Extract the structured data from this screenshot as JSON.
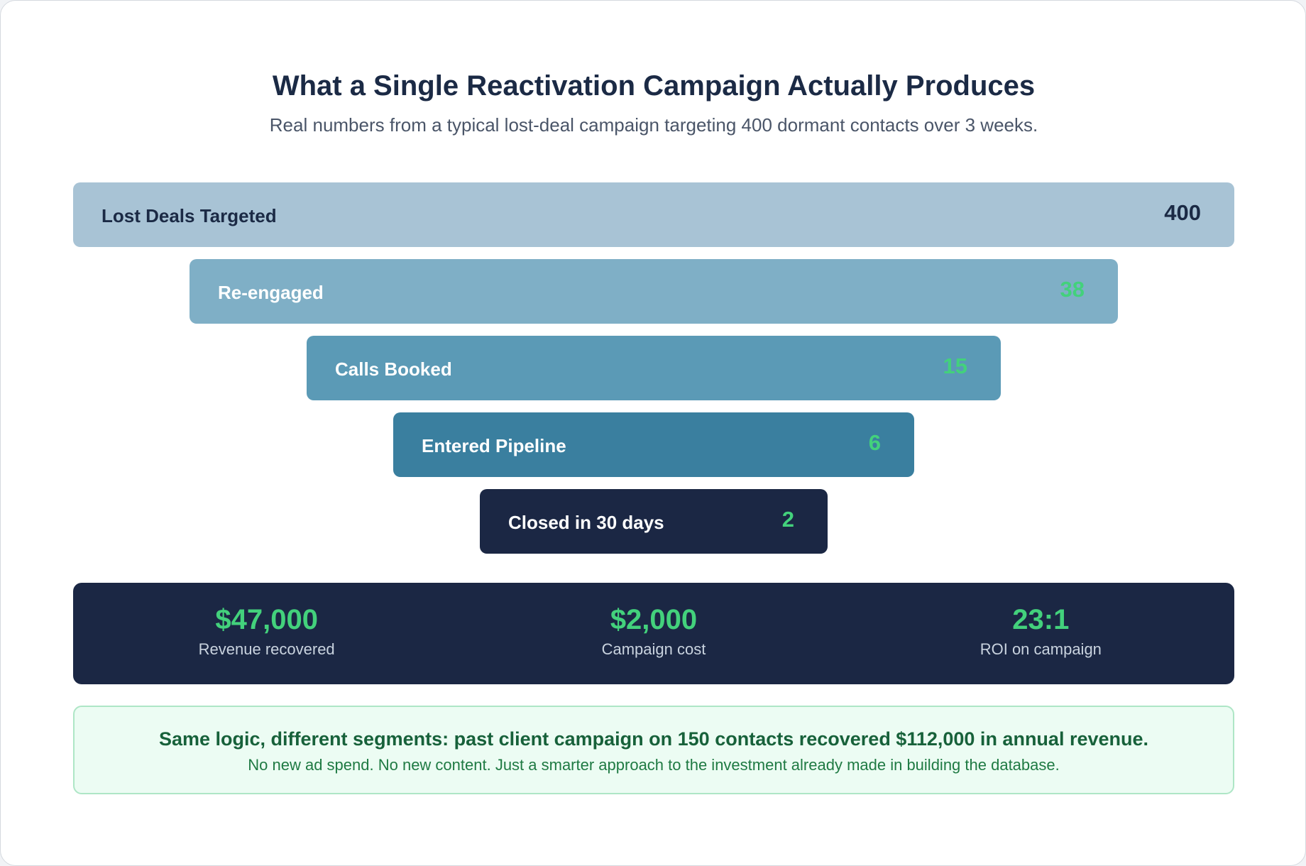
{
  "header": {
    "title": "What a Single Reactivation Campaign Actually Produces",
    "subtitle": "Real numbers from a typical lost-deal campaign targeting 400 dormant contacts over 3 weeks."
  },
  "funnel": [
    {
      "label": "Lost Deals Targeted",
      "value": 400
    },
    {
      "label": "Re-engaged",
      "value": 38
    },
    {
      "label": "Calls Booked",
      "value": 15
    },
    {
      "label": "Entered Pipeline",
      "value": 6
    },
    {
      "label": "Closed in 30 days",
      "value": 2
    }
  ],
  "stats": [
    {
      "value": "$47,000",
      "label": "Revenue recovered"
    },
    {
      "value": "$2,000",
      "label": "Campaign cost"
    },
    {
      "value": "23:1",
      "label": "ROI on campaign"
    }
  ],
  "note": {
    "headline": "Same logic, different segments: past client campaign on 150 contacts recovered $112,000 in annual revenue.",
    "body": "No new ad spend. No new content. Just a smarter approach to the investment already made in building the database."
  }
}
